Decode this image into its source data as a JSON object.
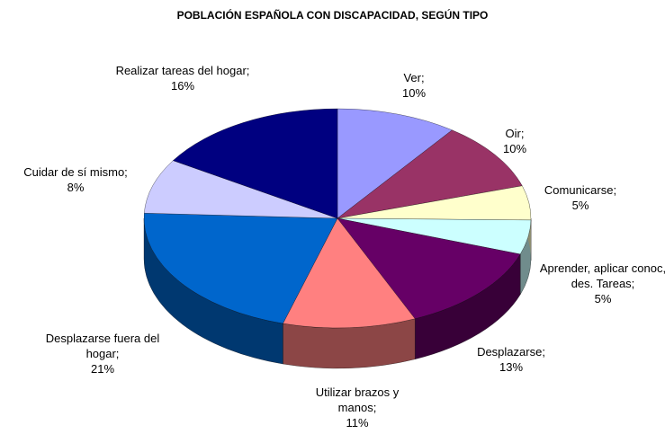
{
  "chart_data": {
    "type": "pie3d",
    "title": "POBLACIÓN ESPAÑOLA CON DISCAPACIDAD, SEGÚN TIPO",
    "categories": [
      "Ver;",
      "Oir;",
      "Comunicarse;",
      "Aprender, aplicar conoc, des. Tareas;",
      "Desplazarse;",
      "Utilizar brazos y manos;",
      "Desplazarse fuera del hogar;",
      "Cuidar de sí mismo;",
      "Realizar tareas del hogar;"
    ],
    "values": [
      10,
      10,
      5,
      5,
      13,
      11,
      21,
      8,
      16
    ],
    "value_labels": [
      "10%",
      "10%",
      "5%",
      "5%",
      "13%",
      "11%",
      "21%",
      "8%",
      "16%"
    ],
    "colors": [
      "#9999ff",
      "#993366",
      "#ffffcc",
      "#ccffff",
      "#660066",
      "#ff8080",
      "#0066cc",
      "#ccccff",
      "#000080"
    ]
  }
}
